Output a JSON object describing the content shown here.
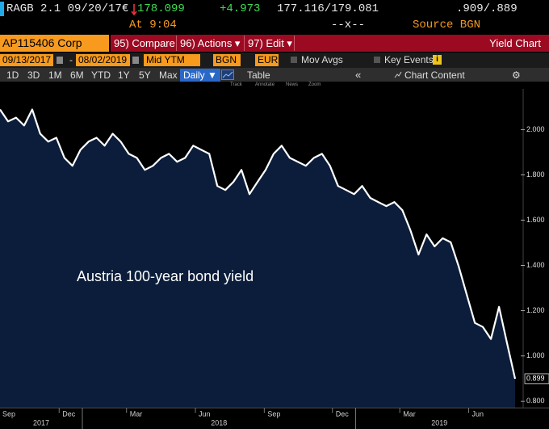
{
  "header": {
    "ticker": "RAGB 2.1 09/20/17",
    "currency": "€",
    "price": "178.099",
    "change": "+4.973",
    "bid_ask": "177.116/179.081",
    "yields": ".909/.889",
    "time": "At 9:04",
    "spread": "--x--",
    "source": "Source BGN"
  },
  "toolbar": {
    "security": "AP115406 Corp",
    "buttons": [
      "95) Compare",
      "96) Actions ▾",
      "97) Edit ▾"
    ],
    "function": "Yield Chart"
  },
  "settings": {
    "start_date": "09/13/2017",
    "end_date": "08/02/2019",
    "field": "Mid YTM",
    "source": "BGN",
    "currency": "EUR",
    "mov_avgs": "Mov Avgs",
    "key_events": "Key Events"
  },
  "periods": [
    "1D",
    "3D",
    "1M",
    "6M",
    "YTD",
    "1Y",
    "5Y",
    "Max"
  ],
  "frequency": "Daily ▼",
  "table": "Table",
  "chart_content": "Chart Content",
  "tools": [
    "Track",
    "Annotate",
    "News",
    "Zoom"
  ],
  "chart_data": {
    "type": "line",
    "annotation": "Austria 100-year bond yield",
    "color": "#ffffff",
    "fill": "#0b1d3a",
    "values": [
      2.089,
      2.036,
      2.053,
      2.018,
      2.089,
      1.982,
      1.947,
      1.964,
      1.875,
      1.84,
      1.911,
      1.947,
      1.964,
      1.929,
      1.982,
      1.947,
      1.893,
      1.875,
      1.822,
      1.84,
      1.875,
      1.893,
      1.858,
      1.875,
      1.929,
      1.911,
      1.893,
      1.751,
      1.733,
      1.769,
      1.822,
      1.715,
      1.769,
      1.822,
      1.893,
      1.929,
      1.875,
      1.858,
      1.84,
      1.875,
      1.893,
      1.84,
      1.751,
      1.733,
      1.715,
      1.751,
      1.698,
      1.68,
      1.662,
      1.68,
      1.644,
      1.555,
      1.448,
      1.537,
      1.484,
      1.52,
      1.502,
      1.395,
      1.27,
      1.146,
      1.128,
      1.075,
      1.217,
      1.057,
      0.899
    ],
    "ylim": [
      0.77,
      2.18
    ],
    "yticks": [
      {
        "value": 0.8,
        "label": "0.800"
      },
      {
        "value": 1.0,
        "label": "1.000"
      },
      {
        "value": 1.2,
        "label": "1.200"
      },
      {
        "value": 1.4,
        "label": "1.400"
      },
      {
        "value": 1.6,
        "label": "1.600"
      },
      {
        "value": 1.8,
        "label": "1.800"
      },
      {
        "value": 2.0,
        "label": "2.000"
      }
    ],
    "xticks": [
      {
        "value": "2017-09",
        "label": "Sep"
      },
      {
        "value": "2017-12",
        "label": "Dec"
      },
      {
        "value": "2018-03",
        "label": "Mar"
      },
      {
        "value": "2018-06",
        "label": "Jun"
      },
      {
        "value": "2018-09",
        "label": "Sep"
      },
      {
        "value": "2018-12",
        "label": "Dec"
      },
      {
        "value": "2019-03",
        "label": "Mar"
      },
      {
        "value": "2019-06",
        "label": "Jun"
      }
    ],
    "year_ticks": [
      2017,
      2018,
      2019
    ]
  }
}
